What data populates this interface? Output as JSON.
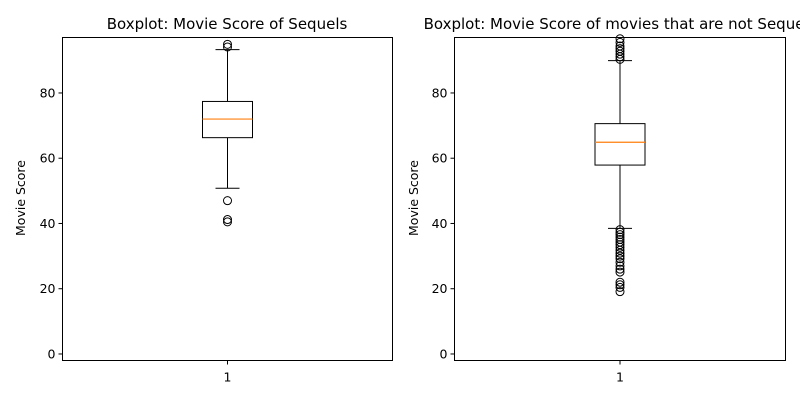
{
  "chart_data": [
    {
      "type": "box",
      "title": "Boxplot: Movie Score of Sequels",
      "xlabel": "",
      "ylabel": "Movie Score",
      "ylim": [
        -2,
        97
      ],
      "yticks": [
        0,
        20,
        40,
        60,
        80
      ],
      "xticks": [
        "1"
      ],
      "box": {
        "q1": 66.3,
        "median": 72,
        "q3": 77.4,
        "whisker_low": 50.8,
        "whisker_high": 93.3,
        "outliers": [
          94.1,
          94.9,
          47,
          41.2,
          40.5
        ]
      },
      "colors": {
        "box": "#000000",
        "median": "#ff7f0e"
      }
    },
    {
      "type": "box",
      "title": "Boxplot: Movie Score of movies that are not Sequels",
      "xlabel": "",
      "ylabel": "Movie Score",
      "ylim": [
        -2,
        97
      ],
      "yticks": [
        0,
        20,
        40,
        60,
        80
      ],
      "xticks": [
        "1"
      ],
      "box": {
        "q1": 57.9,
        "median": 64.9,
        "q3": 70.6,
        "whisker_low": 38.5,
        "whisker_high": 89.9,
        "outliers": [
          90.3,
          91.1,
          91.9,
          92.8,
          93.6,
          94.4,
          95.5,
          96.6,
          38.1,
          37.3,
          36.6,
          35.8,
          35.1,
          34.3,
          33.5,
          32.7,
          31.8,
          30.9,
          30,
          29.2,
          28.1,
          27,
          26,
          25.1,
          22,
          21.2,
          20.4,
          19.1
        ]
      },
      "colors": {
        "box": "#000000",
        "median": "#ff7f0e"
      }
    }
  ]
}
